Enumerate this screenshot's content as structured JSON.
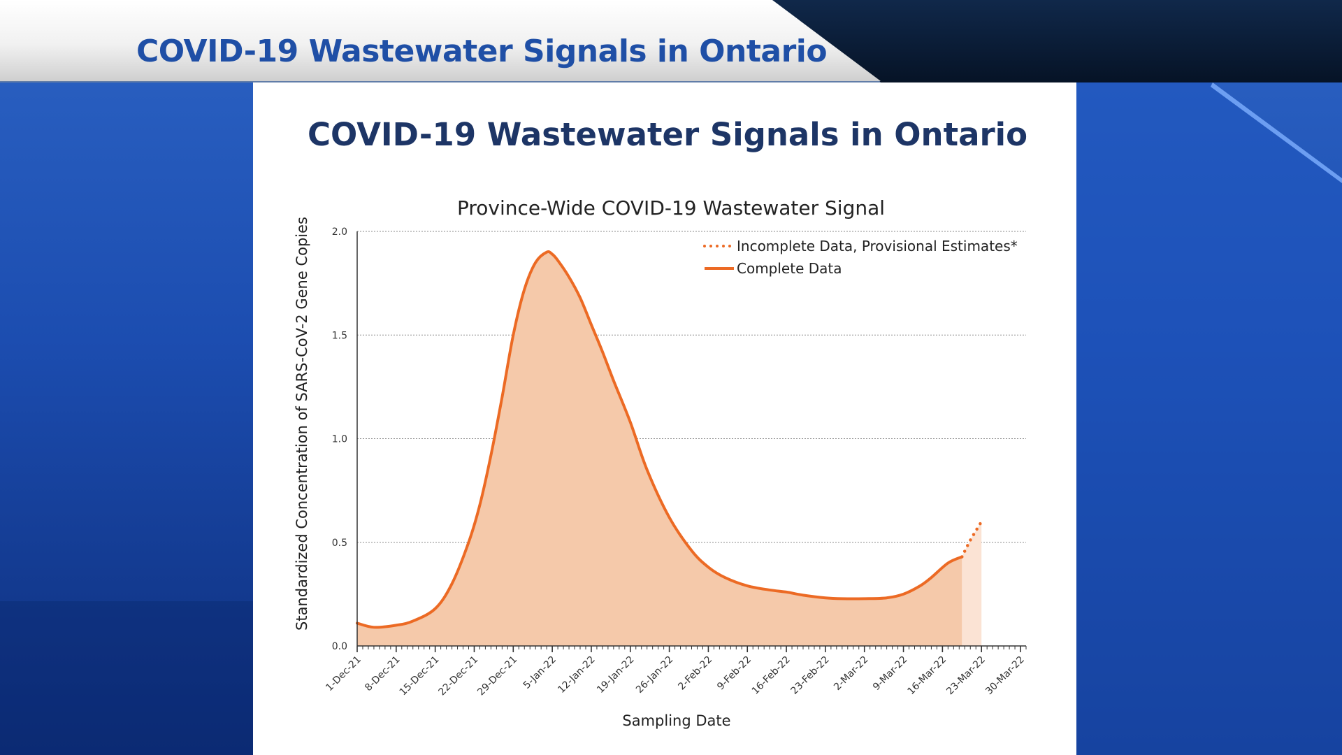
{
  "banner": {
    "title": "COVID-19 Wastewater Signals in Ontario"
  },
  "card": {
    "title": "COVID-19 Wastewater Signals in Ontario"
  },
  "colors": {
    "line": "#ec6a24",
    "fill": "#f5c9aa",
    "fill_provisional": "#fbe3d4",
    "title_banner": "#1f4fa6",
    "title_card": "#1d3566"
  },
  "chart_data": {
    "type": "area",
    "title": "Province-Wide COVID-19 Wastewater Signal",
    "xlabel": "Sampling Date",
    "ylabel": "Standardized Concentration of SARS-CoV-2 Gene Copies",
    "ylim": [
      0,
      2.0
    ],
    "xlim": [
      0,
      120
    ],
    "x_unit": "days since 1-Dec-21",
    "yticks": [
      "0.0",
      "0.5",
      "1.0",
      "1.5",
      "2.0"
    ],
    "xtick_labels": [
      "1-Dec-21",
      "8-Dec-21",
      "15-Dec-21",
      "22-Dec-21",
      "29-Dec-21",
      "5-Jan-22",
      "12-Jan-22",
      "19-Jan-22",
      "26-Jan-22",
      "2-Feb-22",
      "9-Feb-22",
      "16-Feb-22",
      "23-Feb-22",
      "2-Mar-22",
      "9-Mar-22",
      "16-Mar-22",
      "23-Mar-22",
      "30-Mar-22"
    ],
    "grid": true,
    "legend_position": "top-right",
    "series": [
      {
        "name": "Complete Data",
        "style": "solid",
        "x": [
          0,
          3,
          7,
          10,
          14,
          17,
          20,
          22,
          24,
          26,
          28,
          30,
          32,
          34,
          35,
          36,
          38,
          40,
          42,
          44,
          46,
          49,
          52,
          56,
          60,
          63,
          66,
          70,
          74,
          77,
          80,
          84,
          87,
          91,
          95,
          98,
          101,
          103,
          106,
          108.5
        ],
        "y": [
          0.11,
          0.09,
          0.1,
          0.12,
          0.18,
          0.3,
          0.5,
          0.68,
          0.92,
          1.2,
          1.5,
          1.72,
          1.85,
          1.9,
          1.89,
          1.86,
          1.78,
          1.68,
          1.55,
          1.42,
          1.28,
          1.08,
          0.85,
          0.62,
          0.46,
          0.38,
          0.33,
          0.29,
          0.27,
          0.26,
          0.245,
          0.232,
          0.228,
          0.228,
          0.232,
          0.25,
          0.29,
          0.33,
          0.4,
          0.43
        ]
      },
      {
        "name": "Incomplete Data, Provisional Estimates*",
        "style": "dotted",
        "x": [
          108.5,
          110,
          112
        ],
        "y": [
          0.43,
          0.51,
          0.6
        ]
      }
    ]
  }
}
